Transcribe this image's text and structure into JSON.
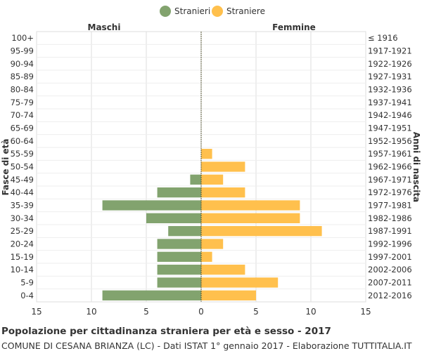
{
  "title": "Popolazione per cittadinanza straniera per età e sesso - 2017",
  "subtitle": "COMUNE DI CESANA BRIANZA (LC) - Dati ISTAT 1° gennaio 2017 - Elaborazione TUTTITALIA.IT",
  "chart_data": {
    "type": "bar",
    "orientation": "horizontal-pyramid",
    "legend_position": "top-center",
    "grid": true,
    "left_header": "Maschi",
    "right_header": "Femmine",
    "ylabel_left": "Fasce di età",
    "ylabel_right": "Anni di nascita",
    "categories": [
      "100+",
      "95-99",
      "90-94",
      "85-89",
      "80-84",
      "75-79",
      "70-74",
      "65-69",
      "60-64",
      "55-59",
      "50-54",
      "45-49",
      "40-44",
      "35-39",
      "30-34",
      "25-29",
      "20-24",
      "15-19",
      "10-14",
      "5-9",
      "0-4"
    ],
    "birth_years": [
      "≤ 1916",
      "1917-1921",
      "1922-1926",
      "1927-1931",
      "1932-1936",
      "1937-1941",
      "1942-1946",
      "1947-1951",
      "1952-1956",
      "1957-1961",
      "1962-1966",
      "1967-1971",
      "1972-1976",
      "1977-1981",
      "1982-1986",
      "1987-1991",
      "1992-1996",
      "1997-2001",
      "2002-2006",
      "2007-2011",
      "2012-2016"
    ],
    "xlim": [
      -15,
      15
    ],
    "x_ticks": [
      15,
      10,
      5,
      0,
      5,
      10,
      15
    ],
    "series": [
      {
        "name": "Stranieri",
        "color": "#82a36e",
        "values": [
          0,
          0,
          0,
          0,
          0,
          0,
          0,
          0,
          0,
          0,
          0,
          1,
          4,
          9,
          5,
          3,
          4,
          4,
          4,
          4,
          9
        ]
      },
      {
        "name": "Straniere",
        "color": "#ffc04d",
        "values": [
          0,
          0,
          0,
          0,
          0,
          0,
          0,
          0,
          0,
          1,
          4,
          2,
          4,
          9,
          9,
          11,
          2,
          1,
          4,
          7,
          5
        ]
      }
    ]
  }
}
